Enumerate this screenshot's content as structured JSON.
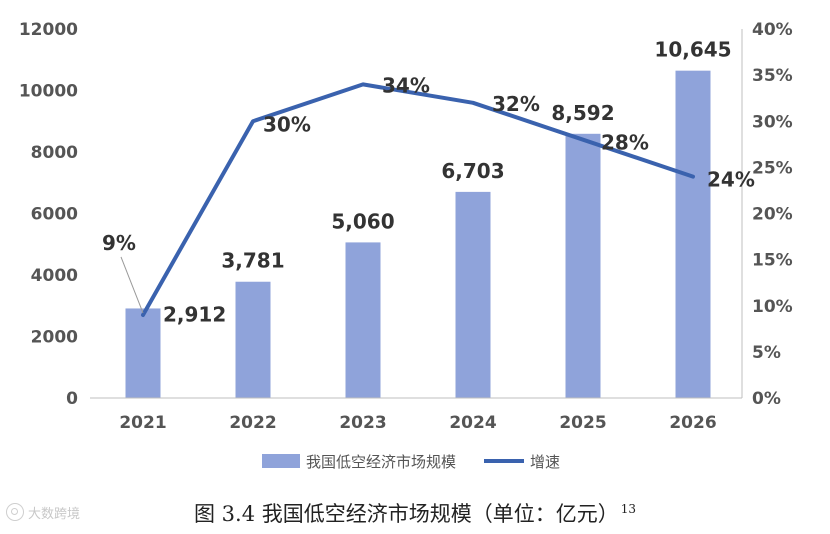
{
  "chart_data": {
    "type": "bar",
    "categories": [
      "2021",
      "2022",
      "2023",
      "2024",
      "2025",
      "2026"
    ],
    "series": [
      {
        "name": "我国低空经济市场规模",
        "type": "bar",
        "axis": "left",
        "color": "#8FA3DA",
        "values": [
          2912,
          3781,
          5060,
          6703,
          8592,
          10645
        ],
        "labels": [
          "2,912",
          "3,781",
          "5,060",
          "6,703",
          "8,592",
          "10,645"
        ]
      },
      {
        "name": "增速",
        "type": "line",
        "axis": "right",
        "color": "#3A62AE",
        "values": [
          9,
          30,
          34,
          32,
          28,
          24
        ],
        "labels": [
          "9%",
          "30%",
          "34%",
          "32%",
          "28%",
          "24%"
        ]
      }
    ],
    "y_left": {
      "min": 0,
      "max": 12000,
      "ticks": [
        "0",
        "2000",
        "4000",
        "6000",
        "8000",
        "10000",
        "12000"
      ],
      "tick_values": [
        0,
        2000,
        4000,
        6000,
        8000,
        10000,
        12000
      ]
    },
    "y_right": {
      "min": 0,
      "max": 40,
      "ticks": [
        "0%",
        "5%",
        "10%",
        "15%",
        "20%",
        "25%",
        "30%",
        "35%",
        "40%"
      ],
      "tick_values": [
        0,
        5,
        10,
        15,
        20,
        25,
        30,
        35,
        40
      ]
    },
    "legend_position": "bottom",
    "grid": false
  },
  "caption": {
    "text": "图 3.4  我国低空经济市场规模（单位：亿元）",
    "footnote": "13"
  },
  "watermark": {
    "text": "大数跨境"
  }
}
